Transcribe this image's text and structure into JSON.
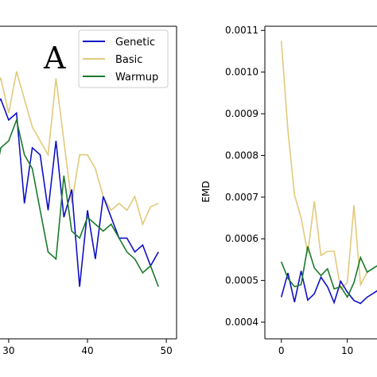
{
  "chart_data": [
    {
      "type": "line",
      "panel_label": "A",
      "x_ticks": [
        30,
        40,
        50
      ],
      "xlim": [
        28.9,
        51.3
      ],
      "legend": {
        "placement": "top-right",
        "entries": [
          "Genetic",
          "Basic",
          "Warmup"
        ]
      },
      "series": [
        {
          "name": "Genetic",
          "color": "#1010c8",
          "x": [
            28,
            29,
            30,
            31,
            32,
            33,
            34,
            35,
            36,
            37,
            38,
            39,
            40,
            41,
            42,
            43,
            44,
            45,
            46,
            47,
            48,
            49
          ],
          "y": [
            0.522,
            0.524,
            0.518,
            0.52,
            0.494,
            0.51,
            0.508,
            0.492,
            0.512,
            0.49,
            0.498,
            0.47,
            0.492,
            0.478,
            0.496,
            0.49,
            0.484,
            0.484,
            0.48,
            0.482,
            0.476,
            0.48
          ]
        },
        {
          "name": "Basic",
          "color": "#e2c97a",
          "x": [
            28,
            29,
            30,
            31,
            32,
            33,
            34,
            35,
            36,
            37,
            38,
            39,
            40,
            41,
            42,
            43,
            44,
            45,
            46,
            47,
            48,
            49
          ],
          "y": [
            0.526,
            0.53,
            0.52,
            0.532,
            0.524,
            0.516,
            0.512,
            0.508,
            0.53,
            0.512,
            0.494,
            0.508,
            0.508,
            0.504,
            0.496,
            0.492,
            0.494,
            0.492,
            0.496,
            0.488,
            0.493,
            0.494
          ]
        },
        {
          "name": "Warmup",
          "color": "#1a7a2a",
          "x": [
            28,
            29,
            30,
            31,
            32,
            33,
            34,
            35,
            36,
            37,
            38,
            39,
            40,
            41,
            42,
            43,
            44,
            45,
            46,
            47,
            48,
            49
          ],
          "y": [
            0.498,
            0.51,
            0.512,
            0.518,
            0.508,
            0.504,
            0.492,
            0.48,
            0.478,
            0.502,
            0.486,
            0.484,
            0.49,
            0.488,
            0.486,
            0.488,
            0.484,
            0.48,
            0.478,
            0.474,
            0.476,
            0.47
          ]
        }
      ]
    },
    {
      "type": "line",
      "ylabel": "EMD",
      "x_ticks": [
        0,
        10
      ],
      "y_ticks": [
        0.0004,
        0.0005,
        0.0006,
        0.0007,
        0.0008,
        0.0009,
        0.001,
        0.0011
      ],
      "xlim": [
        -2.5,
        14.5
      ],
      "ylim": [
        0.00036,
        0.00111
      ],
      "series": [
        {
          "name": "Genetic",
          "color": "#1010c8",
          "x": [
            0,
            1,
            2,
            3,
            4,
            5,
            6,
            7,
            8,
            9,
            10,
            11,
            12,
            13,
            14,
            15
          ],
          "y": [
            0.00046,
            0.000518,
            0.000448,
            0.000523,
            0.000453,
            0.000468,
            0.000508,
            0.000485,
            0.000447,
            0.000498,
            0.000472,
            0.000452,
            0.000445,
            0.00046,
            0.00047,
            0.00048
          ]
        },
        {
          "name": "Basic",
          "color": "#e2c97a",
          "x": [
            0,
            1,
            2,
            3,
            4,
            5,
            6,
            7,
            8,
            9,
            10,
            11,
            12,
            13,
            14,
            15
          ],
          "y": [
            0.001075,
            0.00086,
            0.000705,
            0.00065,
            0.000565,
            0.00069,
            0.00056,
            0.00057,
            0.00057,
            0.00048,
            0.000495,
            0.00068,
            0.00049,
            0.00052,
            0.00053,
            0.00054
          ]
        },
        {
          "name": "Warmup",
          "color": "#1a7a2a",
          "x": [
            0,
            1,
            2,
            3,
            4,
            5,
            6,
            7,
            8,
            9,
            10,
            11,
            12,
            13,
            14,
            15
          ],
          "y": [
            0.000545,
            0.000505,
            0.000485,
            0.00049,
            0.000582,
            0.00053,
            0.000512,
            0.000528,
            0.00048,
            0.000485,
            0.00046,
            0.000495,
            0.000555,
            0.00052,
            0.00053,
            0.00054
          ]
        }
      ]
    }
  ]
}
